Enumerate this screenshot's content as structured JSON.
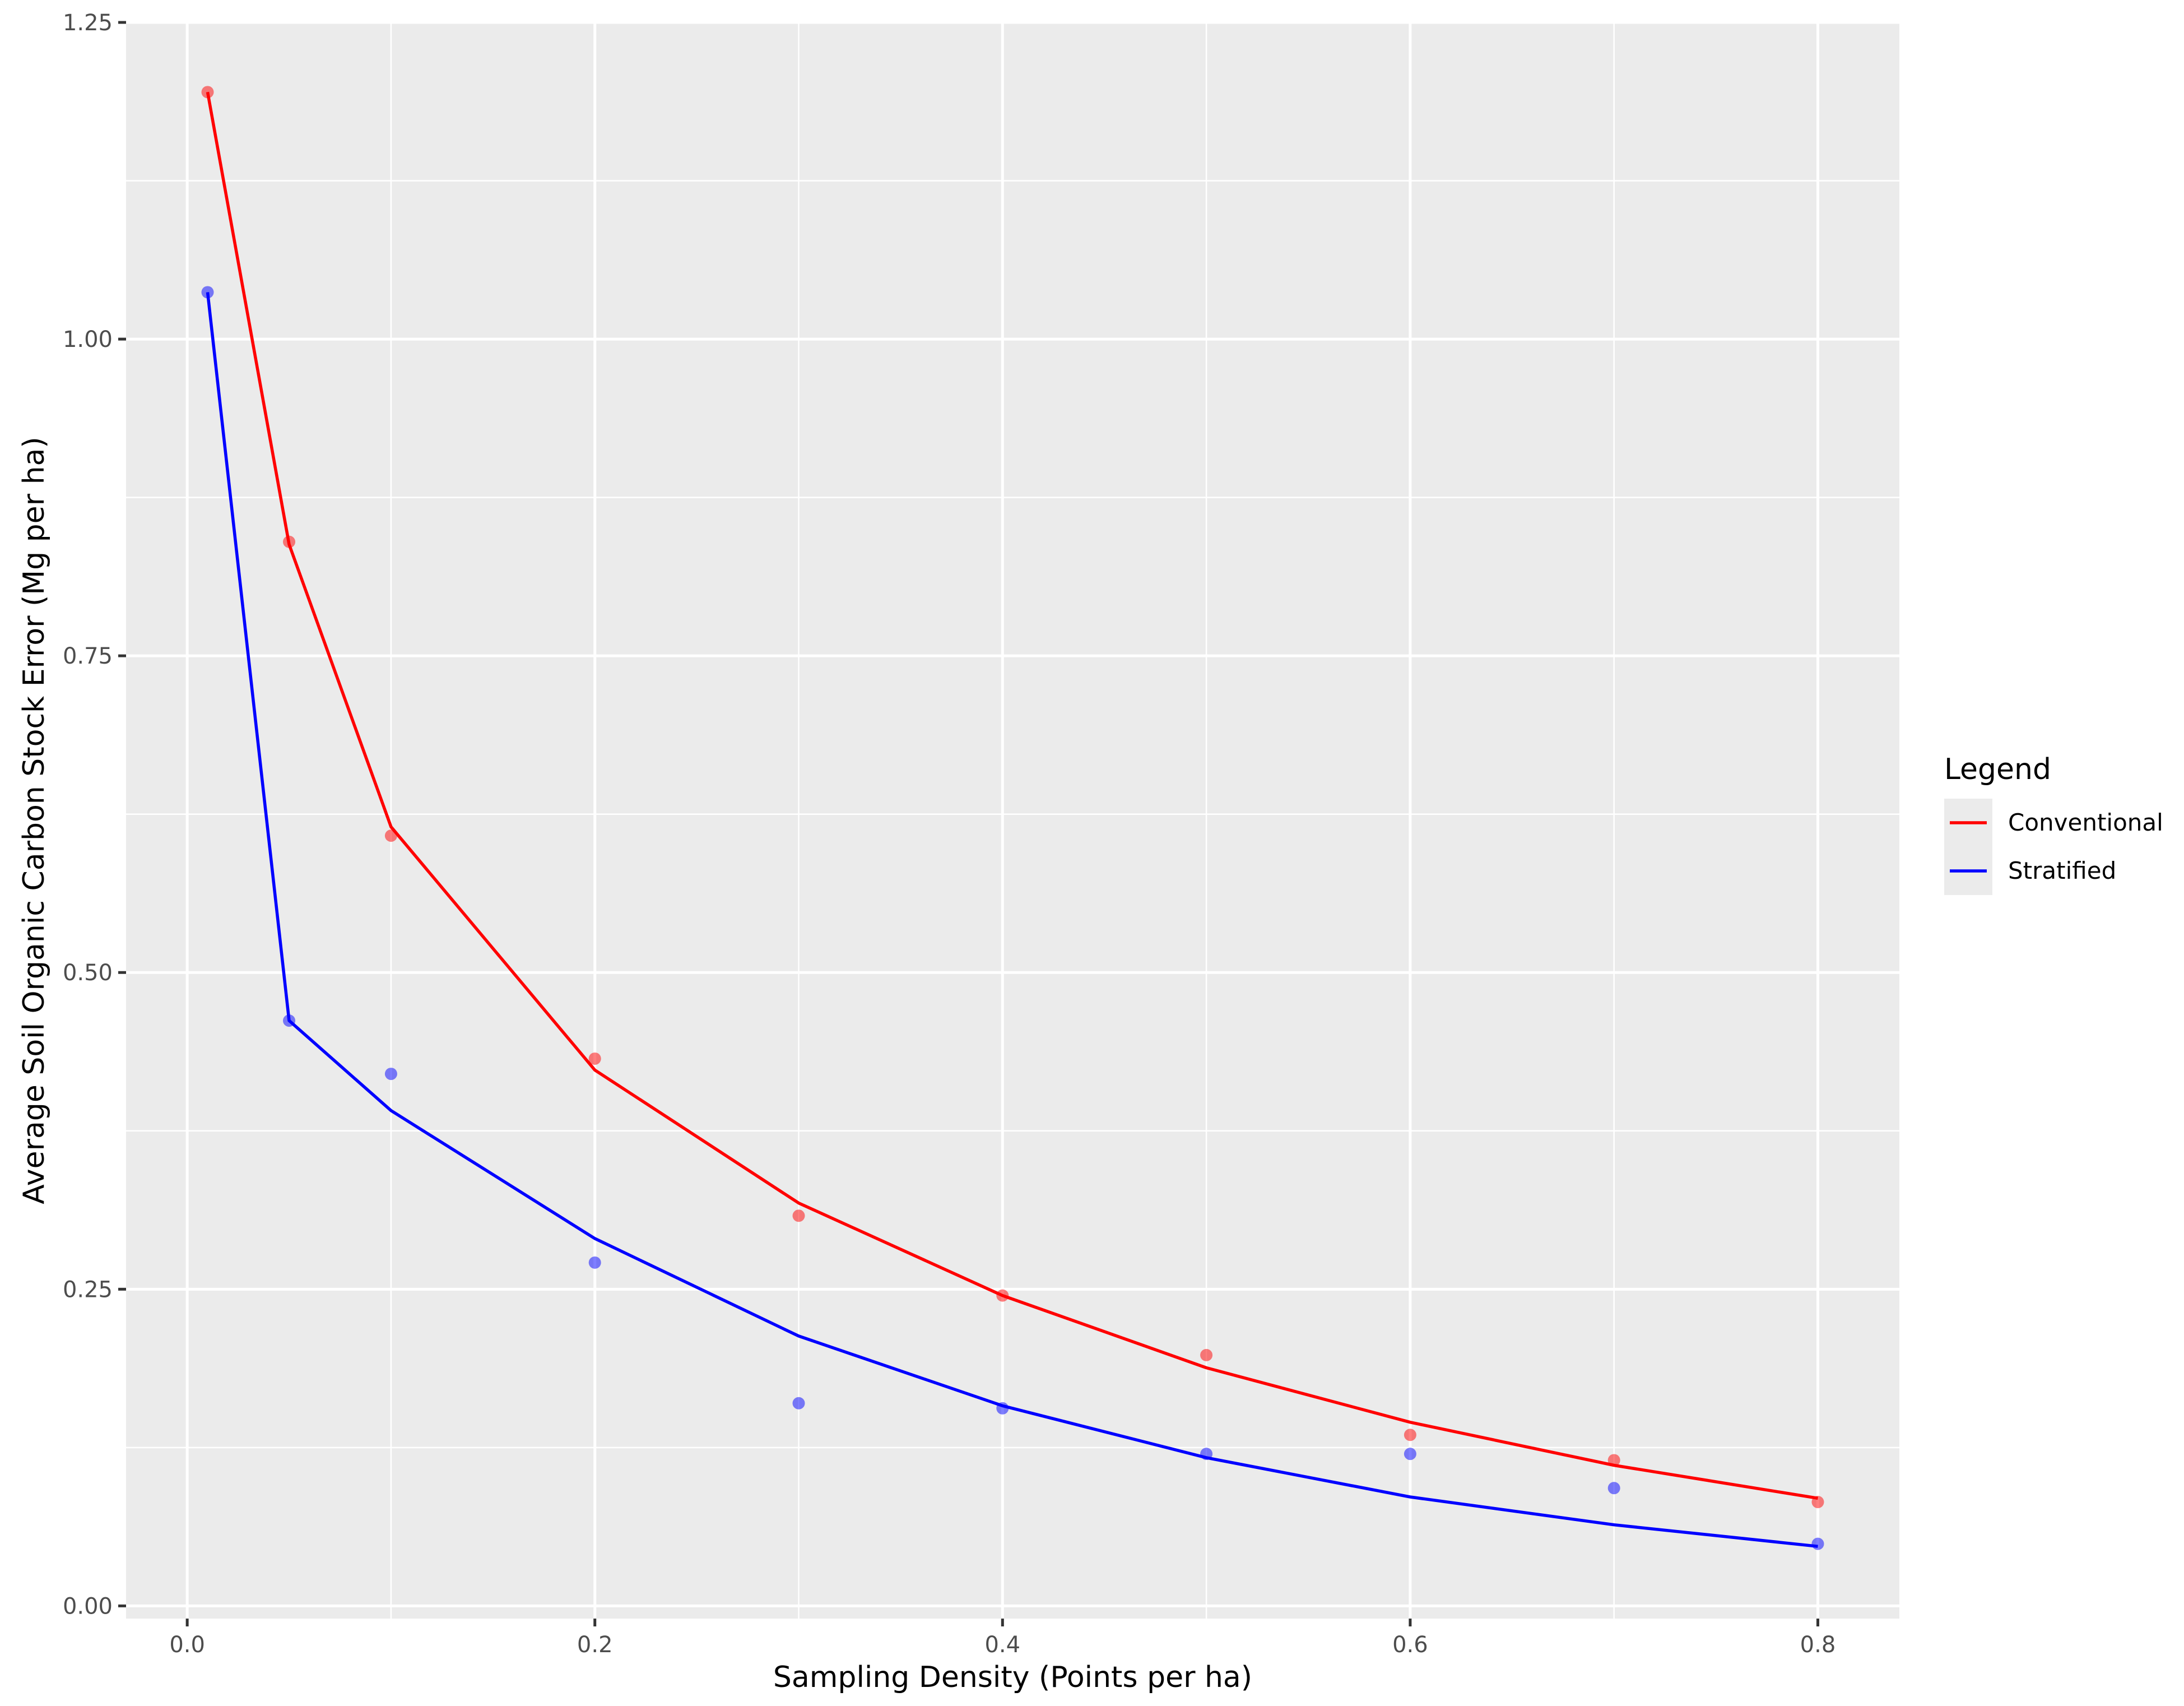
{
  "chart_data": {
    "type": "line",
    "title": "",
    "xlabel": "Sampling Density (Points per ha)",
    "ylabel": "Average Soil Organic Carbon Stock Error (Mg per ha)",
    "xlim": [
      -0.03,
      0.84
    ],
    "ylim": [
      -0.01,
      1.25
    ],
    "xticks": [
      0.0,
      0.2,
      0.4,
      0.6,
      0.8
    ],
    "xtick_labels": [
      "0.0",
      "0.2",
      "0.4",
      "0.6",
      "0.8"
    ],
    "yticks": [
      0.0,
      0.25,
      0.5,
      0.75,
      1.0,
      1.25
    ],
    "ytick_labels": [
      "0.00",
      "0.25",
      "0.50",
      "0.75",
      "1.00",
      "1.25"
    ],
    "x_minor_breaks": [
      0.1,
      0.3,
      0.5,
      0.7
    ],
    "y_minor_breaks": [
      0.125,
      0.375,
      0.625,
      0.875,
      1.125
    ],
    "grid": true,
    "panel_background": "#EBEBEB",
    "legend": {
      "title": "Legend",
      "position": "right",
      "entries": [
        "Conventional",
        "Stratified"
      ]
    },
    "series": [
      {
        "name": "Conventional",
        "color": "#FF0000",
        "points": {
          "x": [
            0.01,
            0.05,
            0.1,
            0.2,
            0.3,
            0.4,
            0.5,
            0.6,
            0.7,
            0.8
          ],
          "y": [
            1.195,
            0.84,
            0.608,
            0.432,
            0.308,
            0.245,
            0.198,
            0.135,
            0.115,
            0.082
          ]
        },
        "line": {
          "x": [
            0.01,
            0.05,
            0.1,
            0.2,
            0.3,
            0.4,
            0.5,
            0.6,
            0.7,
            0.8
          ],
          "y": [
            1.195,
            0.838,
            0.615,
            0.423,
            0.318,
            0.245,
            0.188,
            0.145,
            0.111,
            0.085
          ]
        }
      },
      {
        "name": "Stratified",
        "color": "#0000FF",
        "points": {
          "x": [
            0.01,
            0.05,
            0.1,
            0.2,
            0.3,
            0.4,
            0.5,
            0.6,
            0.7,
            0.8
          ],
          "y": [
            1.037,
            0.462,
            0.42,
            0.271,
            0.16,
            0.156,
            0.12,
            0.12,
            0.093,
            0.049
          ]
        },
        "line": {
          "x": [
            0.01,
            0.05,
            0.1,
            0.2,
            0.3,
            0.4,
            0.5,
            0.6,
            0.7,
            0.8
          ],
          "y": [
            1.037,
            0.462,
            0.391,
            0.29,
            0.213,
            0.158,
            0.117,
            0.086,
            0.064,
            0.047
          ]
        }
      }
    ]
  }
}
